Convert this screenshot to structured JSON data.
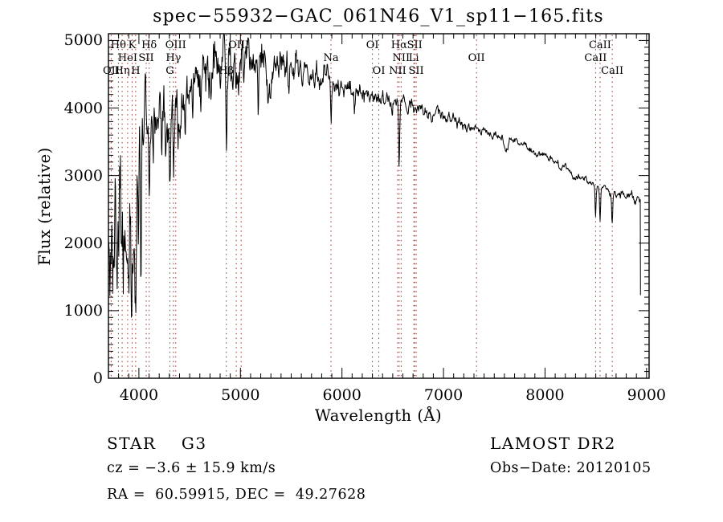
{
  "title": "spec−55932−GAC_061N46_V1_sp11−165.fits",
  "annotations": {
    "class_label": "STAR    G3",
    "cz": "cz = −3.6 ± 15.9 km/s",
    "radec": "RA =  60.59915, DEC =  49.27628",
    "survey": "LAMOST DR2",
    "obs_date": "Obs−Date: 20120105"
  },
  "chart_data": {
    "type": "line",
    "title": "spec−55932−GAC_061N46_V1_sp11−165.fits",
    "xlabel": "Wavelength (Å)",
    "ylabel": "Flux (relative)",
    "xlim": [
      3700,
      9025
    ],
    "ylim": [
      0,
      5100
    ],
    "x_ticks": [
      4000,
      5000,
      6000,
      7000,
      8000,
      9000
    ],
    "y_ticks": [
      0,
      1000,
      2000,
      3000,
      4000,
      5000
    ],
    "x_minor_step": 100,
    "y_minor_step": 100,
    "grid": false,
    "legend": "none",
    "spectrum_color": "#000000",
    "marker_color": "#943428",
    "series_name": "STAR G3 spectrum (flux vs wavelength)",
    "continuum_anchors": [
      [
        3702,
        2050,
        620
      ],
      [
        3760,
        2250,
        640
      ],
      [
        3820,
        2300,
        620
      ],
      [
        3880,
        2250,
        630
      ],
      [
        3935,
        2100,
        600
      ],
      [
        3968,
        2450,
        520
      ],
      [
        3990,
        3250,
        400
      ],
      [
        4015,
        3650,
        300
      ],
      [
        4060,
        3780,
        260
      ],
      [
        4150,
        3760,
        250
      ],
      [
        4250,
        3850,
        250
      ],
      [
        4350,
        3980,
        250
      ],
      [
        4450,
        4230,
        230
      ],
      [
        4550,
        4390,
        230
      ],
      [
        4650,
        4520,
        230
      ],
      [
        4750,
        4600,
        230
      ],
      [
        4850,
        4620,
        230
      ],
      [
        4950,
        4680,
        220
      ],
      [
        5050,
        4690,
        210
      ],
      [
        5150,
        4660,
        190
      ],
      [
        5250,
        4620,
        170
      ],
      [
        5350,
        4590,
        150
      ],
      [
        5450,
        4560,
        140
      ],
      [
        5550,
        4520,
        130
      ],
      [
        5650,
        4490,
        120
      ],
      [
        5750,
        4460,
        115
      ],
      [
        5850,
        4430,
        110
      ],
      [
        5950,
        4360,
        100
      ],
      [
        6050,
        4310,
        90
      ],
      [
        6150,
        4270,
        85
      ],
      [
        6250,
        4230,
        80
      ],
      [
        6350,
        4190,
        75
      ],
      [
        6450,
        4150,
        70
      ],
      [
        6550,
        4100,
        65
      ],
      [
        6650,
        4020,
        60
      ],
      [
        6750,
        3975,
        55
      ],
      [
        6850,
        3930,
        50
      ],
      [
        6950,
        3885,
        48
      ],
      [
        7050,
        3840,
        45
      ],
      [
        7150,
        3795,
        45
      ],
      [
        7250,
        3745,
        42
      ],
      [
        7350,
        3695,
        40
      ],
      [
        7450,
        3645,
        40
      ],
      [
        7550,
        3595,
        38
      ],
      [
        7650,
        3525,
        36
      ],
      [
        7750,
        3460,
        34
      ],
      [
        7850,
        3390,
        34
      ],
      [
        7950,
        3320,
        32
      ],
      [
        8050,
        3240,
        32
      ],
      [
        8150,
        3150,
        30
      ],
      [
        8250,
        3060,
        30
      ],
      [
        8350,
        2960,
        30
      ],
      [
        8450,
        2880,
        28
      ],
      [
        8550,
        2805,
        28
      ],
      [
        8650,
        2760,
        30
      ],
      [
        8750,
        2720,
        34
      ],
      [
        8850,
        2680,
        38
      ],
      [
        8940,
        2620,
        42
      ]
    ],
    "absorption_lines": [
      [
        3933,
        1300,
        10
      ],
      [
        3968,
        1200,
        8
      ],
      [
        3995,
        1100,
        4
      ],
      [
        4020,
        2500,
        5
      ],
      [
        4101,
        950,
        5
      ],
      [
        4226,
        650,
        4
      ],
      [
        4305,
        1050,
        7
      ],
      [
        4340,
        1150,
        5
      ],
      [
        4383,
        500,
        4
      ],
      [
        4455,
        420,
        4
      ],
      [
        4530,
        500,
        4
      ],
      [
        4861,
        1400,
        6
      ],
      [
        5175,
        1000,
        5
      ],
      [
        5270,
        450,
        5
      ],
      [
        5892,
        700,
        6
      ],
      [
        6122,
        250,
        4
      ],
      [
        6495,
        200,
        4
      ],
      [
        6563,
        1000,
        5
      ],
      [
        6880,
        130,
        12
      ],
      [
        7180,
        90,
        14
      ],
      [
        7620,
        190,
        20
      ],
      [
        8280,
        90,
        14
      ],
      [
        8498,
        450,
        5
      ],
      [
        8542,
        470,
        5
      ],
      [
        8662,
        430,
        5
      ]
    ],
    "end_drop": {
      "wavelength": 8940,
      "flux": 1230
    },
    "line_markers": [
      {
        "label": "OII",
        "wavelength": 3727,
        "row": 3
      },
      {
        "label": "Hθ",
        "wavelength": 3798,
        "row": 1
      },
      {
        "label": "Hη",
        "wavelength": 3835,
        "row": 3
      },
      {
        "label": "HeI",
        "wavelength": 3889,
        "row": 2
      },
      {
        "label": "K",
        "wavelength": 3933,
        "row": 1
      },
      {
        "label": "H",
        "wavelength": 3968,
        "row": 3
      },
      {
        "label": "SII",
        "wavelength": 4072,
        "row": 2
      },
      {
        "label": "Hδ",
        "wavelength": 4101,
        "row": 1
      },
      {
        "label": "G",
        "wavelength": 4305,
        "row": 3
      },
      {
        "label": "Hγ",
        "wavelength": 4340,
        "row": 2
      },
      {
        "label": "OIII",
        "wavelength": 4363,
        "row": 1
      },
      {
        "label": "Hβ",
        "wavelength": 4861,
        "row": 3
      },
      {
        "label": "OIII",
        "wavelength": 4959,
        "row": 0
      },
      {
        "label": "OIII",
        "wavelength": 5007,
        "row": 1,
        "label_at": 4983
      },
      {
        "label": "Na",
        "wavelength": 5892,
        "row": 2
      },
      {
        "label": "OI",
        "wavelength": 6300,
        "row": 1
      },
      {
        "label": "OI",
        "wavelength": 6363,
        "row": 3
      },
      {
        "label": "NII",
        "wavelength": 6548,
        "row": 3
      },
      {
        "label": "Hα",
        "wavelength": 6563,
        "row": 1
      },
      {
        "label": "NII",
        "wavelength": 6583,
        "row": 2
      },
      {
        "label": "Li",
        "wavelength": 6708,
        "row": 2
      },
      {
        "label": "SII",
        "wavelength": 6716,
        "row": 1
      },
      {
        "label": "SII",
        "wavelength": 6731,
        "row": 3
      },
      {
        "label": "OII",
        "wavelength": 7325,
        "row": 2
      },
      {
        "label": "CaII",
        "wavelength": 8498,
        "row": 2
      },
      {
        "label": "CaII",
        "wavelength": 8542,
        "row": 1
      },
      {
        "label": "CaII",
        "wavelength": 8662,
        "row": 3
      }
    ]
  }
}
